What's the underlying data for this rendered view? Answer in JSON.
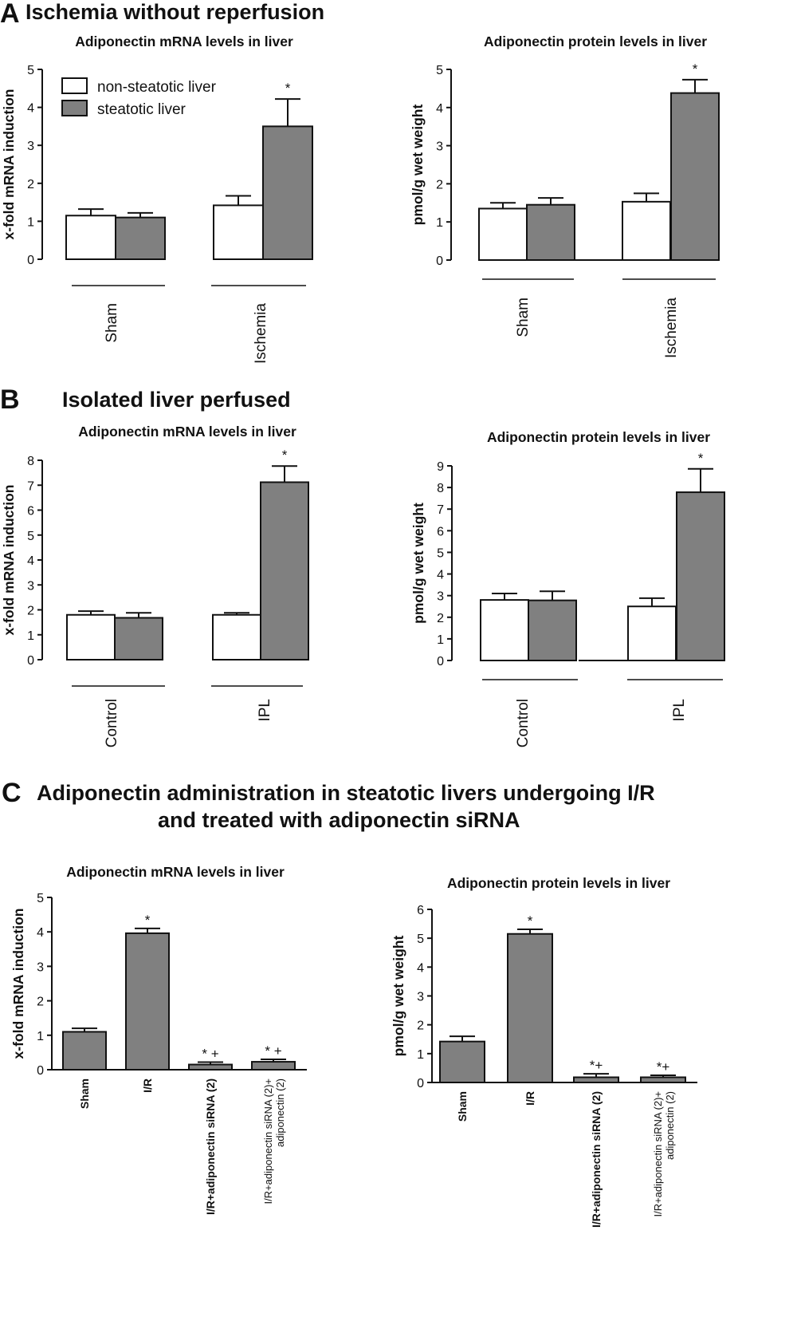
{
  "panels": {
    "A": {
      "letter": "A",
      "heading": "Ischemia without reperfusion"
    },
    "B": {
      "letter": "B",
      "heading": "Isolated liver perfused"
    },
    "C": {
      "letter": "C",
      "heading_line1": "Adiponectin administration in steatotic livers undergoing I/R",
      "heading_line2": "and treated with adiponectin siRNA"
    }
  },
  "colors": {
    "non_steatotic": "#ffffff",
    "steatotic": "#808080",
    "outline": "#111111"
  },
  "chart_data": [
    {
      "panel": "A",
      "type": "bar",
      "title": "Adiponectin mRNA levels in liver",
      "ylabel": "x-fold mRNA induction",
      "ylim": [
        0,
        5
      ],
      "yticks": [
        0,
        1,
        2,
        3,
        4,
        5
      ],
      "groups": [
        "Sham",
        "Ischemia"
      ],
      "legend": [
        "non-steatotic liver",
        "steatotic liver"
      ],
      "series": [
        {
          "name": "non-steatotic liver",
          "values": [
            1.15,
            1.42
          ],
          "errors": [
            0.17,
            0.25
          ]
        },
        {
          "name": "steatotic liver",
          "values": [
            1.1,
            3.5
          ],
          "errors": [
            0.12,
            0.72
          ]
        }
      ],
      "annotations": [
        {
          "group": 1,
          "series": 1,
          "text": "*"
        }
      ]
    },
    {
      "panel": "A",
      "type": "bar",
      "title": "Adiponectin protein levels in liver",
      "ylabel": "pmol/g wet weight",
      "ylim": [
        0,
        5
      ],
      "yticks": [
        0,
        1,
        2,
        3,
        4,
        5
      ],
      "groups": [
        "Sham",
        "Ischemia"
      ],
      "series": [
        {
          "name": "non-steatotic liver",
          "values": [
            1.35,
            1.53
          ],
          "errors": [
            0.15,
            0.22
          ]
        },
        {
          "name": "steatotic liver",
          "values": [
            1.45,
            4.38
          ],
          "errors": [
            0.18,
            0.35
          ]
        }
      ],
      "annotations": [
        {
          "group": 1,
          "series": 1,
          "text": "*"
        }
      ]
    },
    {
      "panel": "B",
      "type": "bar",
      "title": "Adiponectin mRNA levels in liver",
      "ylabel": "x-fold mRNA induction",
      "ylim": [
        0,
        8
      ],
      "yticks": [
        0,
        1,
        2,
        3,
        4,
        5,
        6,
        7,
        8
      ],
      "groups": [
        "Control",
        "IPL"
      ],
      "series": [
        {
          "name": "non-steatotic liver",
          "values": [
            1.8,
            1.8
          ],
          "errors": [
            0.15,
            0.08
          ]
        },
        {
          "name": "steatotic liver",
          "values": [
            1.68,
            7.12
          ],
          "errors": [
            0.2,
            0.65
          ]
        }
      ],
      "annotations": [
        {
          "group": 1,
          "series": 1,
          "text": "*"
        }
      ]
    },
    {
      "panel": "B",
      "type": "bar",
      "title": "Adiponectin protein levels in liver",
      "ylabel": "pmol/g wet weight",
      "ylim": [
        0,
        9
      ],
      "yticks": [
        0,
        1,
        2,
        3,
        4,
        5,
        6,
        7,
        8,
        9
      ],
      "groups": [
        "Control",
        "IPL"
      ],
      "series": [
        {
          "name": "non-steatotic liver",
          "values": [
            2.8,
            2.5
          ],
          "errors": [
            0.3,
            0.38
          ]
        },
        {
          "name": "steatotic liver",
          "values": [
            2.78,
            7.78
          ],
          "errors": [
            0.42,
            1.08
          ]
        }
      ],
      "annotations": [
        {
          "group": 1,
          "series": 1,
          "text": "*"
        }
      ]
    },
    {
      "panel": "C",
      "type": "bar",
      "title": "Adiponectin mRNA levels in liver",
      "ylabel": "x-fold mRNA induction",
      "ylim": [
        0,
        5
      ],
      "yticks": [
        0,
        1,
        2,
        3,
        4,
        5
      ],
      "categories": [
        "Sham",
        "I/R",
        "I/R+adiponectin siRNA (2)",
        "I/R+adiponectin siRNA (2)+ adiponectin (2)"
      ],
      "category_lines": [
        [
          "Sham"
        ],
        [
          "I/R"
        ],
        [
          "I/R+adiponectin siRNA (2)"
        ],
        [
          "I/R+adiponectin siRNA (2)+",
          "adiponectin (2)"
        ]
      ],
      "values": [
        1.1,
        3.96,
        0.15,
        0.23
      ],
      "errors": [
        0.1,
        0.14,
        0.07,
        0.07
      ],
      "annotations": [
        "",
        "*",
        "* +",
        "* +"
      ]
    },
    {
      "panel": "C",
      "type": "bar",
      "title": "Adiponectin protein levels in liver",
      "ylabel": "pmol/g wet weight",
      "ylim": [
        0,
        6
      ],
      "yticks": [
        0,
        1,
        2,
        3,
        4,
        5,
        6
      ],
      "categories": [
        "Sham",
        "I/R",
        "I/R+adiponectin siRNA (2)",
        "I/R+adiponectin siRNA (2)+ adiponectin (2)"
      ],
      "category_lines": [
        [
          "Sham"
        ],
        [
          "I/R"
        ],
        [
          "I/R+adiponectin siRNA (2)"
        ],
        [
          "I/R+adiponectin siRNA (2)+",
          "adiponectin (2)"
        ]
      ],
      "values": [
        1.42,
        5.15,
        0.18,
        0.18
      ],
      "errors": [
        0.18,
        0.16,
        0.12,
        0.07
      ],
      "annotations": [
        "",
        "*",
        "*+",
        "*+"
      ]
    }
  ]
}
